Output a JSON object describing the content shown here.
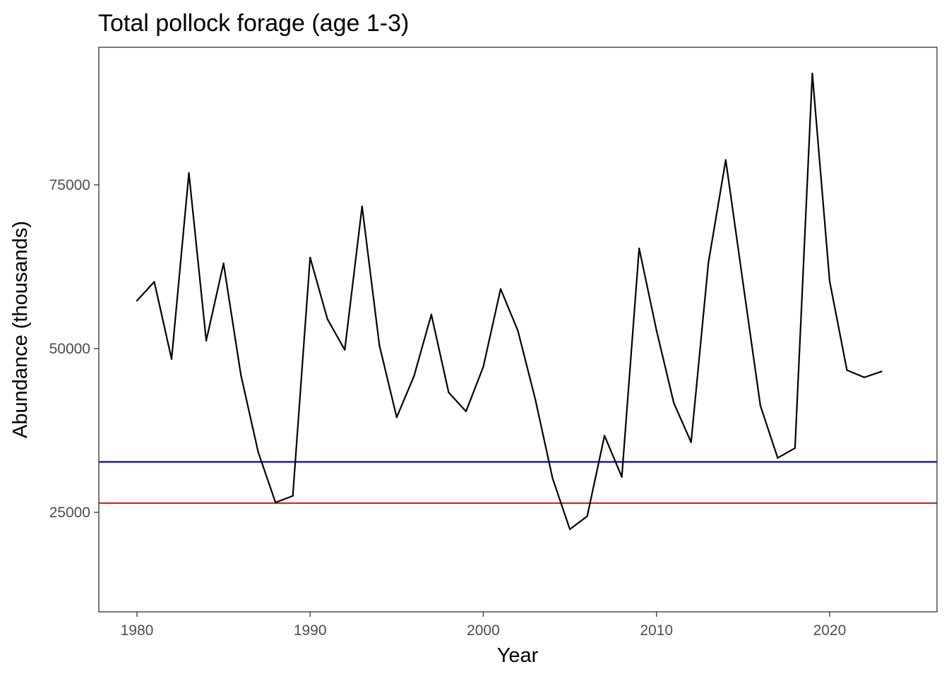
{
  "chart_data": {
    "type": "line",
    "title": "Total pollock forage (age 1-3)",
    "xlabel": "Year",
    "ylabel": "Abundance (thousands)",
    "xlim": [
      1977.8,
      2026.2
    ],
    "ylim": [
      9800,
      96000
    ],
    "x_ticks": [
      1980,
      1990,
      2000,
      2010,
      2020
    ],
    "x_tick_labels": [
      "1980",
      "1990",
      "2000",
      "2010",
      "2020"
    ],
    "y_ticks": [
      25000,
      50000,
      75000
    ],
    "y_tick_labels": [
      "25000",
      "50000",
      "75000"
    ],
    "grid": false,
    "legend": "none",
    "series": [
      {
        "color": "#000000",
        "x": [
          1980,
          1981,
          1982,
          1983,
          1984,
          1985,
          1986,
          1987,
          1988,
          1989,
          1990,
          1991,
          1992,
          1993,
          1994,
          1995,
          1996,
          1997,
          1998,
          1999,
          2000,
          2001,
          2002,
          2003,
          2004,
          2005,
          2006,
          2007,
          2008,
          2009,
          2010,
          2011,
          2012,
          2013,
          2014,
          2015,
          2016,
          2017,
          2018,
          2019,
          2020,
          2021,
          2022,
          2023
        ],
        "y": [
          57300,
          60200,
          48400,
          76800,
          51200,
          63000,
          46000,
          34200,
          26500,
          27500,
          63900,
          54500,
          49800,
          71700,
          50500,
          39500,
          45800,
          55200,
          43300,
          40400,
          47200,
          59100,
          52700,
          42300,
          30200,
          22400,
          24400,
          36700,
          30400,
          65300,
          52800,
          41700,
          35700,
          63100,
          78800,
          60000,
          41300,
          33300,
          34800,
          92000,
          60300,
          46700,
          45600,
          46500
        ]
      }
    ],
    "reference_lines": [
      {
        "axis": "y",
        "value": 32700,
        "color": "#0000cc"
      },
      {
        "axis": "y",
        "value": 26400,
        "color": "#e31a1c"
      }
    ]
  }
}
